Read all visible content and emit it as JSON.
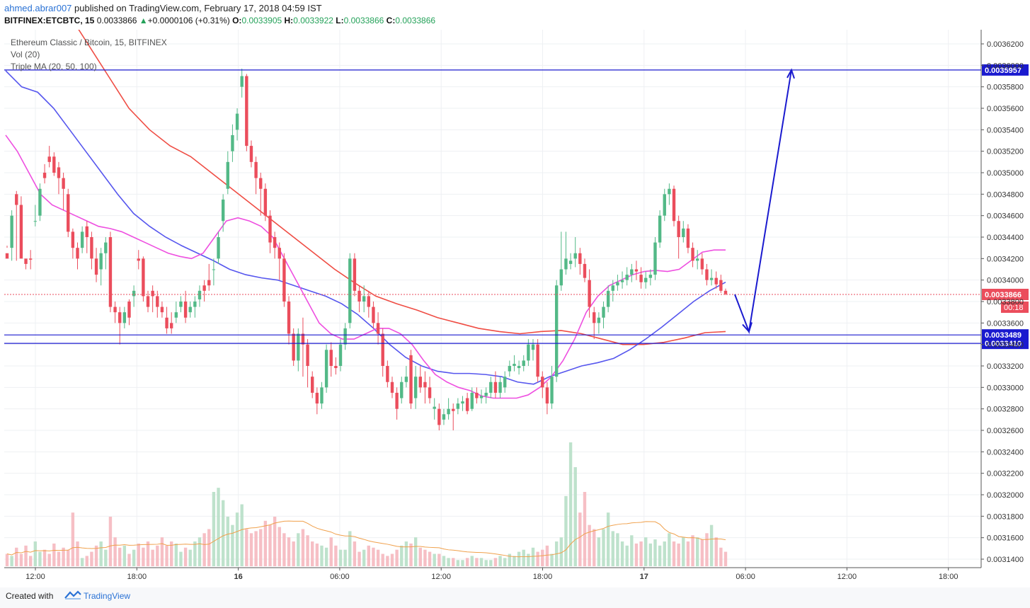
{
  "header": {
    "author": "ahmed.abrar007",
    "published_text": " published on TradingView.com, February 17, 2018 04:59 IST",
    "symbol": "BITFINEX:ETCBTC, 15",
    "last": "0.0033866",
    "change_arrow": "▲",
    "change": "+0.0000106 (+0.31%)",
    "o_label": "O:",
    "o_value": "0.0033905",
    "h_label": "H:",
    "h_value": "0.0033922",
    "l_label": "L:",
    "l_value": "0.0033866",
    "c_label": "C:",
    "c_value": "0.0033866"
  },
  "legend": {
    "title": "Ethereum Classic / Bitcoin, 15, BITFINEX",
    "vol": "Vol (20)",
    "ma": "Triple MA (20, 50, 100)"
  },
  "footer": {
    "created": "Created with",
    "brand": "TradingView",
    "icon": "tradingview-logo-icon"
  },
  "colors": {
    "up": "#53b987",
    "down": "#eb4d5c",
    "ma20": "#ee4fe0",
    "ma50": "#5656ee",
    "ma100": "#ef4d44",
    "hline": "#1a1acf",
    "arrow": "#1a1acf",
    "last_price": "#eb4d5c",
    "vol_ma": "#f0a04b"
  },
  "chart_data": {
    "type": "candlestick",
    "title": "Ethereum Classic / Bitcoin, 15, BITFINEX",
    "price_axis": {
      "ylim": [
        0.00313,
        0.00363
      ],
      "ticks": [
        "0.0036200",
        "0.0036000",
        "0.0035800",
        "0.0035600",
        "0.0035400",
        "0.0035200",
        "0.0035000",
        "0.0034800",
        "0.0034600",
        "0.0034400",
        "0.0034200",
        "0.0034000",
        "0.0033800",
        "0.0033600",
        "0.0033400",
        "0.0033200",
        "0.0033000",
        "0.0032800",
        "0.0032600",
        "0.0032400",
        "0.0032200",
        "0.0032000",
        "0.0031800",
        "0.0031600",
        "0.0031400"
      ]
    },
    "time_axis": {
      "labels": [
        "12:00",
        "18:00",
        "16",
        "06:00",
        "12:00",
        "18:00",
        "17",
        "06:00",
        "12:00",
        "18:00"
      ],
      "bold_labels": [
        "16",
        "17"
      ]
    },
    "horizontal_lines": [
      {
        "price": 0.0035957,
        "label": "0.0035957"
      },
      {
        "price": 0.0033489,
        "label": "0.0033489"
      },
      {
        "price": 0.003341,
        "label": "0.0033410"
      }
    ],
    "last_price": {
      "price": 0.0033866,
      "label": "0.0033866",
      "countdown": "00:18"
    },
    "projection_arrow": {
      "points": [
        [
          0.0033866,
          0
        ],
        [
          0.003352,
          1
        ],
        [
          0.0035957,
          2
        ]
      ]
    },
    "candles": [
      [
        0.003425,
        0.00343,
        0.00342,
        0.003432
      ],
      [
        0.00343,
        0.003465,
        0.00346,
        0.003418
      ],
      [
        0.00348,
        0.003483,
        0.00347,
        0.003418
      ],
      [
        0.00347,
        0.003478,
        0.00342,
        0.003462
      ],
      [
        0.00342,
        0.003415,
        0.003415,
        0.00341
      ],
      [
        0.00342,
        0.003428,
        0.003419,
        0.00341
      ],
      [
        0.003455,
        0.00347,
        0.003455,
        0.00345
      ],
      [
        0.00346,
        0.00349,
        0.003485,
        0.003455
      ],
      [
        0.0035,
        0.003508,
        0.003495,
        0.00349
      ],
      [
        0.003515,
        0.003525,
        0.00351,
        0.003505
      ],
      [
        0.003515,
        0.003519,
        0.0035,
        0.003497
      ],
      [
        0.003505,
        0.00351,
        0.003495,
        0.00348
      ],
      [
        0.003495,
        0.0035,
        0.003485,
        0.003465
      ],
      [
        0.00348,
        0.003485,
        0.003445,
        0.00344
      ],
      [
        0.003445,
        0.003448,
        0.00343,
        0.00342
      ],
      [
        0.00343,
        0.003435,
        0.00342,
        0.00341
      ],
      [
        0.00343,
        0.00345,
        0.003445,
        0.003425
      ],
      [
        0.00345,
        0.003455,
        0.00344,
        0.003425
      ],
      [
        0.00344,
        0.003445,
        0.00342,
        0.00341
      ],
      [
        0.00342,
        0.00343,
        0.003405,
        0.003398
      ],
      [
        0.00341,
        0.00343,
        0.003425,
        0.003395
      ],
      [
        0.003425,
        0.00344,
        0.003435,
        0.00341
      ],
      [
        0.00344,
        0.003445,
        0.003375,
        0.00337
      ],
      [
        0.003375,
        0.00338,
        0.00337,
        0.00336
      ],
      [
        0.00337,
        0.003375,
        0.00336,
        0.00334
      ],
      [
        0.00336,
        0.003375,
        0.00337,
        0.003355
      ],
      [
        0.00338,
        0.003382,
        0.003365,
        0.003358
      ],
      [
        0.003385,
        0.003395,
        0.00339,
        0.003375
      ],
      [
        0.00342,
        0.003428,
        0.003418,
        0.00341
      ],
      [
        0.00342,
        0.003422,
        0.003385,
        0.00338
      ],
      [
        0.003385,
        0.00339,
        0.003375,
        0.00337
      ],
      [
        0.00339,
        0.003395,
        0.003385,
        0.00337
      ],
      [
        0.003385,
        0.00339,
        0.003375,
        0.003365
      ],
      [
        0.003375,
        0.00338,
        0.00337,
        0.003365
      ],
      [
        0.003365,
        0.003375,
        0.003355,
        0.00335
      ],
      [
        0.00336,
        0.00337,
        0.003355,
        0.00335
      ],
      [
        0.003365,
        0.00338,
        0.00337,
        0.00336
      ],
      [
        0.003375,
        0.003385,
        0.00338,
        0.00337
      ],
      [
        0.00338,
        0.00339,
        0.003365,
        0.00336
      ],
      [
        0.00337,
        0.00338,
        0.003375,
        0.003365
      ],
      [
        0.003375,
        0.003385,
        0.00338,
        0.003365
      ],
      [
        0.003382,
        0.003395,
        0.00339,
        0.003375
      ],
      [
        0.003395,
        0.0034,
        0.00339,
        0.00338
      ],
      [
        0.0034,
        0.003415,
        0.003395,
        0.00339
      ],
      [
        0.00341,
        0.00342,
        0.00341,
        0.003395
      ],
      [
        0.00342,
        0.003445,
        0.00344,
        0.003415
      ],
      [
        0.003455,
        0.00348,
        0.003475,
        0.003445
      ],
      [
        0.003485,
        0.00352,
        0.00351,
        0.00348
      ],
      [
        0.00352,
        0.003545,
        0.003535,
        0.00351
      ],
      [
        0.00354,
        0.00356,
        0.003555,
        0.00353
      ],
      [
        0.00358,
        0.003597,
        0.00359,
        0.00357
      ],
      [
        0.00359,
        0.003592,
        0.003525,
        0.00352
      ],
      [
        0.003525,
        0.00353,
        0.00351,
        0.003505
      ],
      [
        0.00351,
        0.003515,
        0.003495,
        0.00348
      ],
      [
        0.003495,
        0.0035,
        0.003485,
        0.00346
      ],
      [
        0.003485,
        0.00349,
        0.00346,
        0.003455
      ],
      [
        0.00346,
        0.003465,
        0.003435,
        0.003425
      ],
      [
        0.00344,
        0.003445,
        0.00343,
        0.00342
      ],
      [
        0.00343,
        0.003435,
        0.00342,
        0.0034
      ],
      [
        0.00342,
        0.003425,
        0.00338,
        0.003375
      ],
      [
        0.00338,
        0.003385,
        0.00335,
        0.00334
      ],
      [
        0.00335,
        0.003355,
        0.003325,
        0.00332
      ],
      [
        0.003325,
        0.003355,
        0.00335,
        0.003315
      ],
      [
        0.00335,
        0.003365,
        0.00334,
        0.00331
      ],
      [
        0.00334,
        0.003345,
        0.00332,
        0.0033
      ],
      [
        0.00331,
        0.003315,
        0.003295,
        0.00329
      ],
      [
        0.003295,
        0.0033,
        0.003285,
        0.003275
      ],
      [
        0.003285,
        0.003305,
        0.0033,
        0.00328
      ],
      [
        0.0033,
        0.00334,
        0.003335,
        0.003295
      ],
      [
        0.003335,
        0.003342,
        0.00332,
        0.00331
      ],
      [
        0.00332,
        0.003328,
        0.003318,
        0.003312
      ],
      [
        0.00332,
        0.003345,
        0.00334,
        0.003315
      ],
      [
        0.00334,
        0.00336,
        0.003355,
        0.003335
      ],
      [
        0.00336,
        0.003425,
        0.00342,
        0.003355
      ],
      [
        0.00342,
        0.003425,
        0.00339,
        0.003385
      ],
      [
        0.00339,
        0.003395,
        0.00338,
        0.00337
      ],
      [
        0.00338,
        0.003395,
        0.003385,
        0.00337
      ],
      [
        0.003385,
        0.00339,
        0.003375,
        0.003365
      ],
      [
        0.003375,
        0.00338,
        0.00336,
        0.003355
      ],
      [
        0.00336,
        0.00337,
        0.00335,
        0.00334
      ],
      [
        0.00335,
        0.003355,
        0.00332,
        0.00331
      ],
      [
        0.00332,
        0.003325,
        0.003305,
        0.0033
      ],
      [
        0.003305,
        0.00331,
        0.003295,
        0.00329
      ],
      [
        0.003295,
        0.0033,
        0.00328,
        0.00327
      ],
      [
        0.00329,
        0.00331,
        0.003305,
        0.003285
      ],
      [
        0.003305,
        0.00332,
        0.00331,
        0.0033
      ],
      [
        0.00333,
        0.003335,
        0.003285,
        0.00328
      ],
      [
        0.00329,
        0.00332,
        0.00331,
        0.00328
      ],
      [
        0.00331,
        0.00332,
        0.0033,
        0.003295
      ],
      [
        0.003305,
        0.003315,
        0.0033,
        0.003285
      ],
      [
        0.0033,
        0.00331,
        0.00329,
        0.003285
      ],
      [
        0.00328,
        0.00329,
        0.003282,
        0.00327
      ],
      [
        0.00328,
        0.003285,
        0.003265,
        0.00326
      ],
      [
        0.00327,
        0.00328,
        0.003275,
        0.003265
      ],
      [
        0.003275,
        0.00329,
        0.00328,
        0.00327
      ],
      [
        0.00328,
        0.003285,
        0.003278,
        0.00326
      ],
      [
        0.00328,
        0.00329,
        0.003285,
        0.003275
      ],
      [
        0.003285,
        0.003292,
        0.003287,
        0.003278
      ],
      [
        0.00329,
        0.003295,
        0.003278,
        0.003275
      ],
      [
        0.00328,
        0.0033,
        0.003295,
        0.003278
      ],
      [
        0.003295,
        0.0033,
        0.00329,
        0.003285
      ],
      [
        0.00329,
        0.003298,
        0.003292,
        0.003285
      ],
      [
        0.003292,
        0.0033,
        0.003295,
        0.003285
      ],
      [
        0.003295,
        0.00331,
        0.003305,
        0.00329
      ],
      [
        0.003305,
        0.003315,
        0.003295,
        0.00329
      ],
      [
        0.003295,
        0.00331,
        0.003305,
        0.00329
      ],
      [
        0.0033,
        0.003315,
        0.00331,
        0.003295
      ],
      [
        0.003315,
        0.003325,
        0.00332,
        0.00331
      ],
      [
        0.00332,
        0.00333,
        0.003322,
        0.003315
      ],
      [
        0.003318,
        0.003325,
        0.00332,
        0.003312
      ],
      [
        0.00332,
        0.00333,
        0.003325,
        0.003315
      ],
      [
        0.003325,
        0.003345,
        0.00334,
        0.00332
      ],
      [
        0.003335,
        0.003345,
        0.00334,
        0.003325
      ],
      [
        0.00334,
        0.003345,
        0.00331,
        0.003305
      ],
      [
        0.00331,
        0.003315,
        0.0033,
        0.00329
      ],
      [
        0.0033,
        0.003305,
        0.003285,
        0.003275
      ],
      [
        0.003285,
        0.00332,
        0.00331,
        0.00328
      ],
      [
        0.00331,
        0.0034,
        0.003395,
        0.003305
      ],
      [
        0.003395,
        0.003445,
        0.00341,
        0.00339
      ],
      [
        0.00341,
        0.003445,
        0.00342,
        0.003405
      ],
      [
        0.003415,
        0.003425,
        0.003418,
        0.00341
      ],
      [
        0.00342,
        0.00344,
        0.003425,
        0.003412
      ],
      [
        0.003425,
        0.00343,
        0.003415,
        0.003405
      ],
      [
        0.003415,
        0.00342,
        0.003402,
        0.003398
      ],
      [
        0.0034,
        0.00341,
        0.003375,
        0.003365
      ],
      [
        0.00337,
        0.003375,
        0.00336,
        0.003345
      ],
      [
        0.00336,
        0.00337,
        0.003365,
        0.00335
      ],
      [
        0.003365,
        0.00338,
        0.003375,
        0.003355
      ],
      [
        0.003375,
        0.003395,
        0.00339,
        0.00337
      ],
      [
        0.00339,
        0.0034,
        0.003395,
        0.00338
      ],
      [
        0.003395,
        0.003405,
        0.003398,
        0.00339
      ],
      [
        0.003398,
        0.003408,
        0.0034,
        0.003392
      ],
      [
        0.0034,
        0.003412,
        0.003405,
        0.003395
      ],
      [
        0.003405,
        0.003415,
        0.00341,
        0.003398
      ],
      [
        0.00341,
        0.003418,
        0.003408,
        0.0034
      ],
      [
        0.003405,
        0.003412,
        0.003398,
        0.003392
      ],
      [
        0.003398,
        0.003408,
        0.003402,
        0.003392
      ],
      [
        0.003402,
        0.00341,
        0.003405,
        0.003395
      ],
      [
        0.003405,
        0.00344,
        0.003435,
        0.0034
      ],
      [
        0.003435,
        0.003465,
        0.00346,
        0.00343
      ],
      [
        0.00346,
        0.003485,
        0.00348,
        0.003455
      ],
      [
        0.00348,
        0.00349,
        0.003485,
        0.00347
      ],
      [
        0.003485,
        0.003488,
        0.003455,
        0.00345
      ],
      [
        0.003455,
        0.00346,
        0.00344,
        0.00342
      ],
      [
        0.00344,
        0.003455,
        0.003448,
        0.003435
      ],
      [
        0.003448,
        0.003452,
        0.00343,
        0.003425
      ],
      [
        0.00343,
        0.003435,
        0.003418,
        0.003412
      ],
      [
        0.003418,
        0.003428,
        0.00342,
        0.00341
      ],
      [
        0.00342,
        0.003425,
        0.00341,
        0.003405
      ],
      [
        0.00341,
        0.003415,
        0.0034,
        0.003395
      ],
      [
        0.0034,
        0.00341,
        0.003402,
        0.003395
      ],
      [
        0.003402,
        0.003408,
        0.003396,
        0.003392
      ],
      [
        0.0034,
        0.003405,
        0.00339,
        0.003388
      ],
      [
        0.00339,
        0.003392,
        0.003387,
        0.003386
      ]
    ],
    "volume": [
      30,
      25,
      45,
      30,
      50,
      25,
      60,
      35,
      40,
      30,
      55,
      35,
      45,
      40,
      130,
      60,
      20,
      25,
      35,
      50,
      60,
      40,
      120,
      70,
      45,
      50,
      30,
      40,
      55,
      45,
      60,
      40,
      50,
      70,
      50,
      60,
      55,
      35,
      45,
      40,
      60,
      70,
      80,
      90,
      180,
      190,
      160,
      120,
      100,
      130,
      150,
      90,
      80,
      85,
      90,
      110,
      100,
      120,
      95,
      80,
      70,
      60,
      80,
      90,
      75,
      60,
      55,
      50,
      45,
      70,
      50,
      40,
      40,
      85,
      60,
      35,
      40,
      50,
      45,
      40,
      30,
      25,
      30,
      40,
      50,
      60,
      55,
      70,
      45,
      40,
      35,
      30,
      30,
      25,
      20,
      20,
      15,
      15,
      20,
      25,
      20,
      20,
      15,
      15,
      20,
      25,
      20,
      30,
      25,
      35,
      40,
      30,
      45,
      35,
      40,
      50,
      30,
      60,
      70,
      170,
      300,
      240,
      130,
      180,
      100,
      90,
      70,
      90,
      130,
      85,
      80,
      60,
      50,
      75,
      55,
      60,
      70,
      55,
      65,
      50,
      60,
      80,
      60,
      55,
      70,
      60,
      75,
      70,
      65,
      80,
      100,
      70,
      45,
      35,
      30,
      25,
      20,
      15,
      10
    ],
    "ma20": [
      0.003535,
      0.00352,
      0.0035,
      0.00348,
      0.00347,
      0.003465,
      0.00346,
      0.003455,
      0.00345,
      0.003448,
      0.003445,
      0.00344,
      0.003435,
      0.00343,
      0.003425,
      0.003422,
      0.00342,
      0.003425,
      0.00344,
      0.003455,
      0.003458,
      0.003455,
      0.00345,
      0.00344,
      0.00342,
      0.0034,
      0.00338,
      0.00336,
      0.00335,
      0.003345,
      0.003345,
      0.00335,
      0.003355,
      0.003355,
      0.00335,
      0.00334,
      0.003325,
      0.003312,
      0.003305,
      0.0033,
      0.003297,
      0.003292,
      0.00329,
      0.00329,
      0.00329,
      0.003293,
      0.0033,
      0.00331,
      0.003325,
      0.003345,
      0.00337,
      0.003385,
      0.003395,
      0.0034,
      0.003405,
      0.003408,
      0.003409,
      0.003408,
      0.00341,
      0.003418,
      0.003426,
      0.003428,
      0.003428
    ],
    "ma50": [
      0.003595,
      0.00358,
      0.003575,
      0.00356,
      0.00354,
      0.00352,
      0.0035,
      0.00348,
      0.003462,
      0.00345,
      0.00344,
      0.003432,
      0.003425,
      0.003418,
      0.00341,
      0.003405,
      0.003402,
      0.0034,
      0.003395,
      0.00339,
      0.003385,
      0.003378,
      0.003368,
      0.003355,
      0.00334,
      0.003328,
      0.00332,
      0.003315,
      0.003313,
      0.003313,
      0.003312,
      0.00331,
      0.003305,
      0.003303,
      0.00331,
      0.003315,
      0.00332,
      0.003323,
      0.003327,
      0.003335,
      0.003345,
      0.003356,
      0.003368,
      0.00338,
      0.00339,
      0.003398
    ],
    "ma100": [
      0.00365,
      0.00362,
      0.00359,
      0.00356,
      0.00354,
      0.003525,
      0.003515,
      0.0035,
      0.003485,
      0.00347,
      0.003455,
      0.00344,
      0.003425,
      0.00341,
      0.003397,
      0.003385,
      0.003378,
      0.003372,
      0.003365,
      0.00336,
      0.003355,
      0.003352,
      0.00335,
      0.003352,
      0.003353,
      0.00335,
      0.003345,
      0.00334,
      0.00334,
      0.003342,
      0.003346,
      0.003351,
      0.003352
    ]
  }
}
